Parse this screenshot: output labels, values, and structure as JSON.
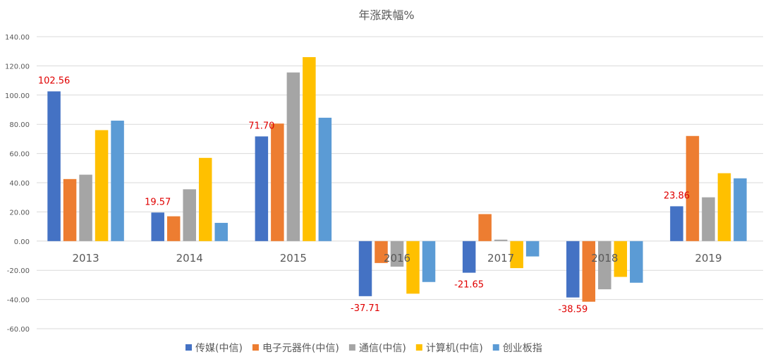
{
  "chart_data": {
    "type": "bar",
    "title": "年涨跌幅%",
    "categories": [
      "2013",
      "2014",
      "2015",
      "2016",
      "2017",
      "2018",
      "2019"
    ],
    "ylim": [
      -60,
      140
    ],
    "yticks": [
      "-60.00",
      "-40.00",
      "-20.00",
      "0.00",
      "20.00",
      "40.00",
      "60.00",
      "80.00",
      "100.00",
      "120.00",
      "140.00"
    ],
    "grid": true,
    "legend_position": "bottom",
    "series": [
      {
        "name": "传媒(中信)",
        "color": "#4472c4",
        "values": [
          102.56,
          19.57,
          71.7,
          -37.71,
          -21.65,
          -38.59,
          23.86
        ]
      },
      {
        "name": "电子元器件(中信)",
        "color": "#ed7d31",
        "values": [
          42.5,
          17.0,
          80.5,
          -15.0,
          18.5,
          -41.5,
          72.0
        ]
      },
      {
        "name": "通信(中信)",
        "color": "#a5a5a5",
        "values": [
          45.5,
          35.5,
          115.5,
          -17.5,
          1.0,
          -33.0,
          30.0
        ]
      },
      {
        "name": "计算机(中信)",
        "color": "#ffc000",
        "values": [
          76.0,
          57.0,
          126.0,
          -36.0,
          -18.5,
          -24.5,
          46.5
        ]
      },
      {
        "name": "创业板指",
        "color": "#5b9bd5",
        "values": [
          82.5,
          12.5,
          84.5,
          -28.0,
          -10.5,
          -28.5,
          43.0
        ]
      }
    ],
    "data_labels": [
      {
        "series": "传媒(中信)",
        "category": "2013",
        "text": "102.56"
      },
      {
        "series": "传媒(中信)",
        "category": "2014",
        "text": "19.57"
      },
      {
        "series": "传媒(中信)",
        "category": "2015",
        "text": "71.70"
      },
      {
        "series": "传媒(中信)",
        "category": "2016",
        "text": "-37.71"
      },
      {
        "series": "传媒(中信)",
        "category": "2017",
        "text": "-21.65"
      },
      {
        "series": "传媒(中信)",
        "category": "2018",
        "text": "-38.59"
      },
      {
        "series": "传媒(中信)",
        "category": "2019",
        "text": "23.86"
      }
    ]
  }
}
